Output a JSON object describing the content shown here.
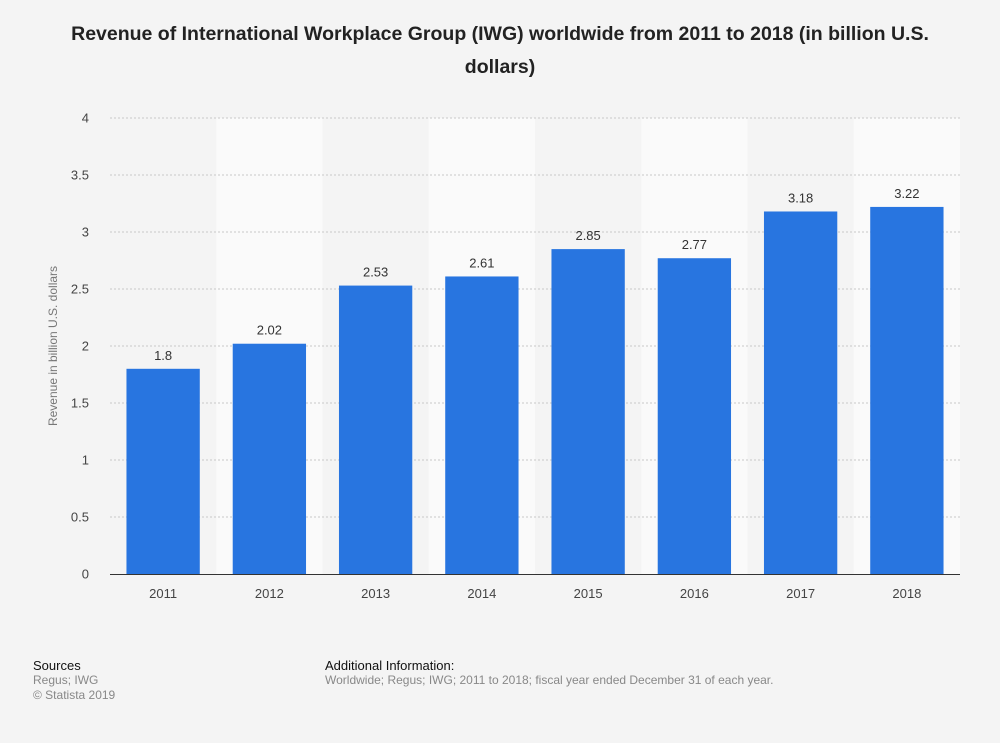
{
  "title": "Revenue of International Workplace Group (IWG) worldwide from 2011 to 2018 (in billion U.S. dollars)",
  "chart_data": {
    "type": "bar",
    "title": "Revenue of International Workplace Group (IWG) worldwide from 2011 to 2018 (in billion U.S. dollars)",
    "xlabel": "",
    "ylabel": "Revenue in billion U.S. dollars",
    "categories": [
      "2011",
      "2012",
      "2013",
      "2014",
      "2015",
      "2016",
      "2017",
      "2018"
    ],
    "values": [
      1.8,
      2.02,
      2.53,
      2.61,
      2.85,
      2.77,
      3.18,
      3.22
    ],
    "value_labels": [
      "1.8",
      "2.02",
      "2.53",
      "2.61",
      "2.85",
      "2.77",
      "3.18",
      "3.22"
    ],
    "ylim": [
      0,
      4
    ],
    "yticks": [
      "0",
      "0.5",
      "1",
      "1.5",
      "2",
      "2.5",
      "3",
      "3.5",
      "4"
    ],
    "grid": true,
    "bar_color": "#2875e0"
  },
  "footer": {
    "sources_heading": "Sources",
    "sources_text": "Regus; IWG",
    "copyright": "© Statista 2019",
    "info_heading": "Additional Information:",
    "info_text": "Worldwide; Regus; IWG; 2011 to 2018; fiscal year ended December 31 of each year."
  }
}
